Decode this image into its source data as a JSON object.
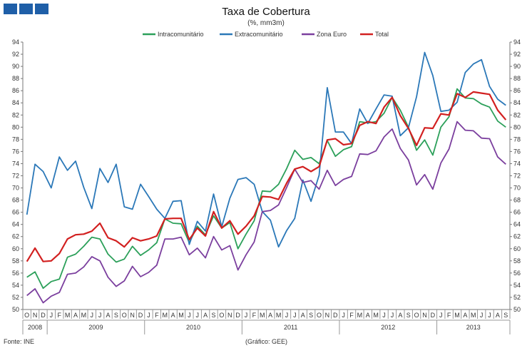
{
  "header": {
    "logo_icon": "ine-logo-squares",
    "brand_color": "#1f5fa8"
  },
  "footer": {
    "source": "Fonte: INE",
    "graphic": "(Gráfico: GEE)"
  },
  "chart_data": {
    "type": "line",
    "title": "Taxa de Cobertura",
    "subtitle": "(%, mm3m)",
    "ylim": [
      50,
      94
    ],
    "yticks": [
      50,
      52,
      54,
      56,
      58,
      60,
      62,
      64,
      66,
      68,
      70,
      72,
      74,
      76,
      78,
      80,
      82,
      84,
      86,
      88,
      90,
      92,
      94
    ],
    "grid": false,
    "legend_position": "top",
    "months": [
      "O",
      "N",
      "D",
      "J",
      "F",
      "M",
      "A",
      "M",
      "J",
      "J",
      "A",
      "S",
      "O",
      "N",
      "D",
      "J",
      "F",
      "M",
      "A",
      "M",
      "J",
      "J",
      "A",
      "S",
      "O",
      "N",
      "D",
      "J",
      "F",
      "M",
      "A",
      "M",
      "J",
      "J",
      "A",
      "S",
      "O",
      "N",
      "D",
      "J",
      "F",
      "M",
      "A",
      "M",
      "J",
      "J",
      "A",
      "S",
      "O",
      "N",
      "D",
      "J",
      "F",
      "M",
      "A",
      "M",
      "J",
      "J",
      "A",
      "S"
    ],
    "years": [
      {
        "label": "2008",
        "start": 0,
        "count": 3
      },
      {
        "label": "2009",
        "start": 3,
        "count": 12
      },
      {
        "label": "2010",
        "start": 15,
        "count": 12
      },
      {
        "label": "2011",
        "start": 27,
        "count": 12
      },
      {
        "label": "2012",
        "start": 39,
        "count": 12
      },
      {
        "label": "2013",
        "start": 51,
        "count": 9
      }
    ],
    "series": [
      {
        "name": "Intracomunitário",
        "color": "#2ca05a",
        "values": [
          55.3,
          56.2,
          53.5,
          54.6,
          55.0,
          58.6,
          59.1,
          60.4,
          61.9,
          61.6,
          59.1,
          57.8,
          58.3,
          60.4,
          58.9,
          59.8,
          61.0,
          64.9,
          64.2,
          64.1,
          61.0,
          63.7,
          62.3,
          65.4,
          63.4,
          64.3,
          60.0,
          62.4,
          64.6,
          69.5,
          69.4,
          70.6,
          73.2,
          76.2,
          74.7,
          75.0,
          74.0,
          77.8,
          75.2,
          76.3,
          76.8,
          80.9,
          80.7,
          80.9,
          82.3,
          84.9,
          82.8,
          80.0,
          76.2,
          77.9,
          75.4,
          80.0,
          81.7,
          86.3,
          84.8,
          84.7,
          83.8,
          83.3,
          81.0,
          80.0
        ]
      },
      {
        "name": "Extracomunitário",
        "color": "#2b78b8",
        "values": [
          65.6,
          73.9,
          72.7,
          70.0,
          75.1,
          72.9,
          74.4,
          70.1,
          66.6,
          73.2,
          70.9,
          73.9,
          66.9,
          66.5,
          70.6,
          68.6,
          66.5,
          65.0,
          67.8,
          67.9,
          60.7,
          64.5,
          62.9,
          69.0,
          63.6,
          68.3,
          71.4,
          71.7,
          70.6,
          66.1,
          64.7,
          60.3,
          63.0,
          65.0,
          71.3,
          67.8,
          72.1,
          86.5,
          79.2,
          79.2,
          77.3,
          83.0,
          80.6,
          83.0,
          85.3,
          85.1,
          78.6,
          79.9,
          85.0,
          92.3,
          88.5,
          82.6,
          82.8,
          84.1,
          89.0,
          90.4,
          91.1,
          86.7,
          84.6,
          83.6
        ]
      },
      {
        "name": "Zona Euro",
        "color": "#7b3f9e",
        "values": [
          52.3,
          53.4,
          51.1,
          52.2,
          52.8,
          55.8,
          56.0,
          57.0,
          58.7,
          58.0,
          55.3,
          53.8,
          54.7,
          57.1,
          55.4,
          56.1,
          57.3,
          61.6,
          61.6,
          61.9,
          59.0,
          60.1,
          58.5,
          62.0,
          59.8,
          60.5,
          56.5,
          59.0,
          61.1,
          66.1,
          66.3,
          67.2,
          70.1,
          73.1,
          70.9,
          71.2,
          69.8,
          72.9,
          70.4,
          71.4,
          71.9,
          75.6,
          75.5,
          76.1,
          78.4,
          79.7,
          76.5,
          74.6,
          70.5,
          72.2,
          69.8,
          74.1,
          76.4,
          80.9,
          79.5,
          79.4,
          78.2,
          78.1,
          75.1,
          73.9
        ]
      },
      {
        "name": "Total",
        "color": "#d22020",
        "values": [
          57.9,
          60.1,
          57.9,
          58.0,
          59.2,
          61.6,
          62.3,
          62.4,
          62.9,
          64.2,
          61.8,
          61.3,
          60.3,
          61.8,
          61.3,
          61.6,
          62.1,
          64.9,
          65.0,
          65.0,
          61.5,
          63.4,
          62.1,
          66.1,
          63.4,
          64.6,
          62.4,
          63.7,
          65.4,
          68.6,
          68.5,
          68.1,
          70.8,
          73.1,
          73.5,
          72.7,
          73.5,
          77.9,
          78.1,
          77.1,
          77.3,
          80.3,
          80.9,
          80.6,
          83.3,
          84.9,
          81.9,
          79.8,
          77.0,
          79.9,
          79.8,
          82.2,
          82.0,
          85.5,
          84.9,
          85.8,
          85.6,
          85.4,
          82.8,
          81.2
        ]
      }
    ]
  }
}
